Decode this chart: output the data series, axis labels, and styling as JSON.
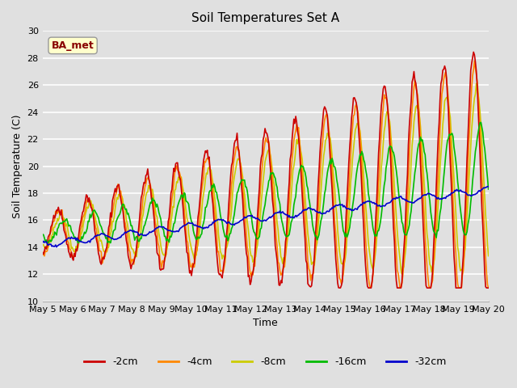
{
  "title": "Soil Temperatures Set A",
  "xlabel": "Time",
  "ylabel": "Soil Temperature (C)",
  "ylim": [
    10,
    30
  ],
  "yticks": [
    10,
    12,
    14,
    16,
    18,
    20,
    22,
    24,
    26,
    28,
    30
  ],
  "annotation": "BA_met",
  "bg_color": "#e0e0e0",
  "line_colors": {
    "-2cm": "#cc0000",
    "-4cm": "#ff8800",
    "-8cm": "#cccc00",
    "-16cm": "#00bb00",
    "-32cm": "#0000cc"
  },
  "legend_labels": [
    "-2cm",
    "-4cm",
    "-8cm",
    "-16cm",
    "-32cm"
  ],
  "x_tick_labels": [
    "May 5",
    "May 6",
    "May 7",
    "May 8",
    "May 9",
    "May 10",
    "May 11",
    "May 12",
    "May 13",
    "May 14",
    "May 15",
    "May 16",
    "May 17",
    "May 18",
    "May 19",
    "May 20"
  ],
  "n_points": 480,
  "days": 15
}
